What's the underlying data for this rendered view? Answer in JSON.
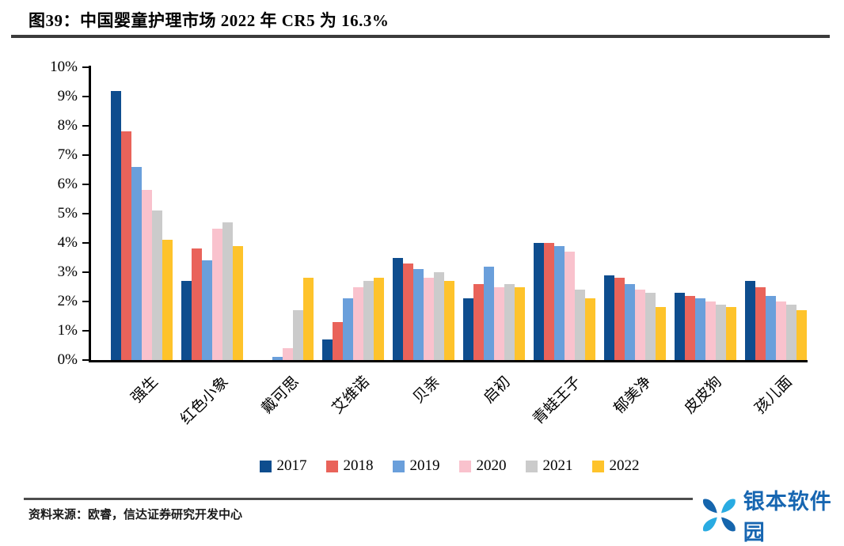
{
  "header": {
    "title": "图39：中国婴童护理市场 2022 年 CR5 为 16.3%"
  },
  "chart_data": {
    "type": "bar",
    "title": "中国婴童护理市场 2022 年 CR5 为 16.3%",
    "categories": [
      "强生",
      "红色小象",
      "戴可思",
      "艾维诺",
      "贝亲",
      "启初",
      "青蛙王子",
      "郁美净",
      "皮皮狗",
      "孩儿面"
    ],
    "series": [
      {
        "name": "2017",
        "color": "#0E4D8E",
        "values": [
          9.2,
          2.7,
          0,
          0.7,
          3.5,
          2.1,
          4.0,
          2.9,
          2.3,
          2.7
        ]
      },
      {
        "name": "2018",
        "color": "#E9635A",
        "values": [
          7.8,
          3.8,
          0,
          1.3,
          3.3,
          2.6,
          4.0,
          2.8,
          2.2,
          2.5
        ]
      },
      {
        "name": "2019",
        "color": "#6A9FDB",
        "values": [
          6.6,
          3.4,
          0.1,
          2.1,
          3.1,
          3.2,
          3.9,
          2.6,
          2.1,
          2.2
        ]
      },
      {
        "name": "2020",
        "color": "#F9C2CD",
        "values": [
          5.8,
          4.5,
          0.4,
          2.5,
          2.8,
          2.5,
          3.7,
          2.4,
          2.0,
          2.0
        ]
      },
      {
        "name": "2021",
        "color": "#CBCBCB",
        "values": [
          5.1,
          4.7,
          1.7,
          2.7,
          3.0,
          2.6,
          2.4,
          2.3,
          1.9,
          1.9
        ]
      },
      {
        "name": "2022",
        "color": "#FEC32B",
        "values": [
          4.1,
          3.9,
          2.8,
          2.8,
          2.7,
          2.5,
          2.1,
          1.8,
          1.8,
          1.7
        ]
      }
    ],
    "y_ticks": [
      "0%",
      "1%",
      "2%",
      "3%",
      "4%",
      "5%",
      "6%",
      "7%",
      "8%",
      "9%",
      "10%"
    ],
    "ylim": [
      0,
      10
    ],
    "xlabel": "",
    "ylabel": "",
    "grid": false,
    "legend_position": "bottom"
  },
  "footer": {
    "source": "资料来源：欧睿，信达证券研究开发中心",
    "logo_text": "银本软件园",
    "logo_colors": {
      "dark": "#1565AD",
      "light": "#29ABE2"
    }
  }
}
